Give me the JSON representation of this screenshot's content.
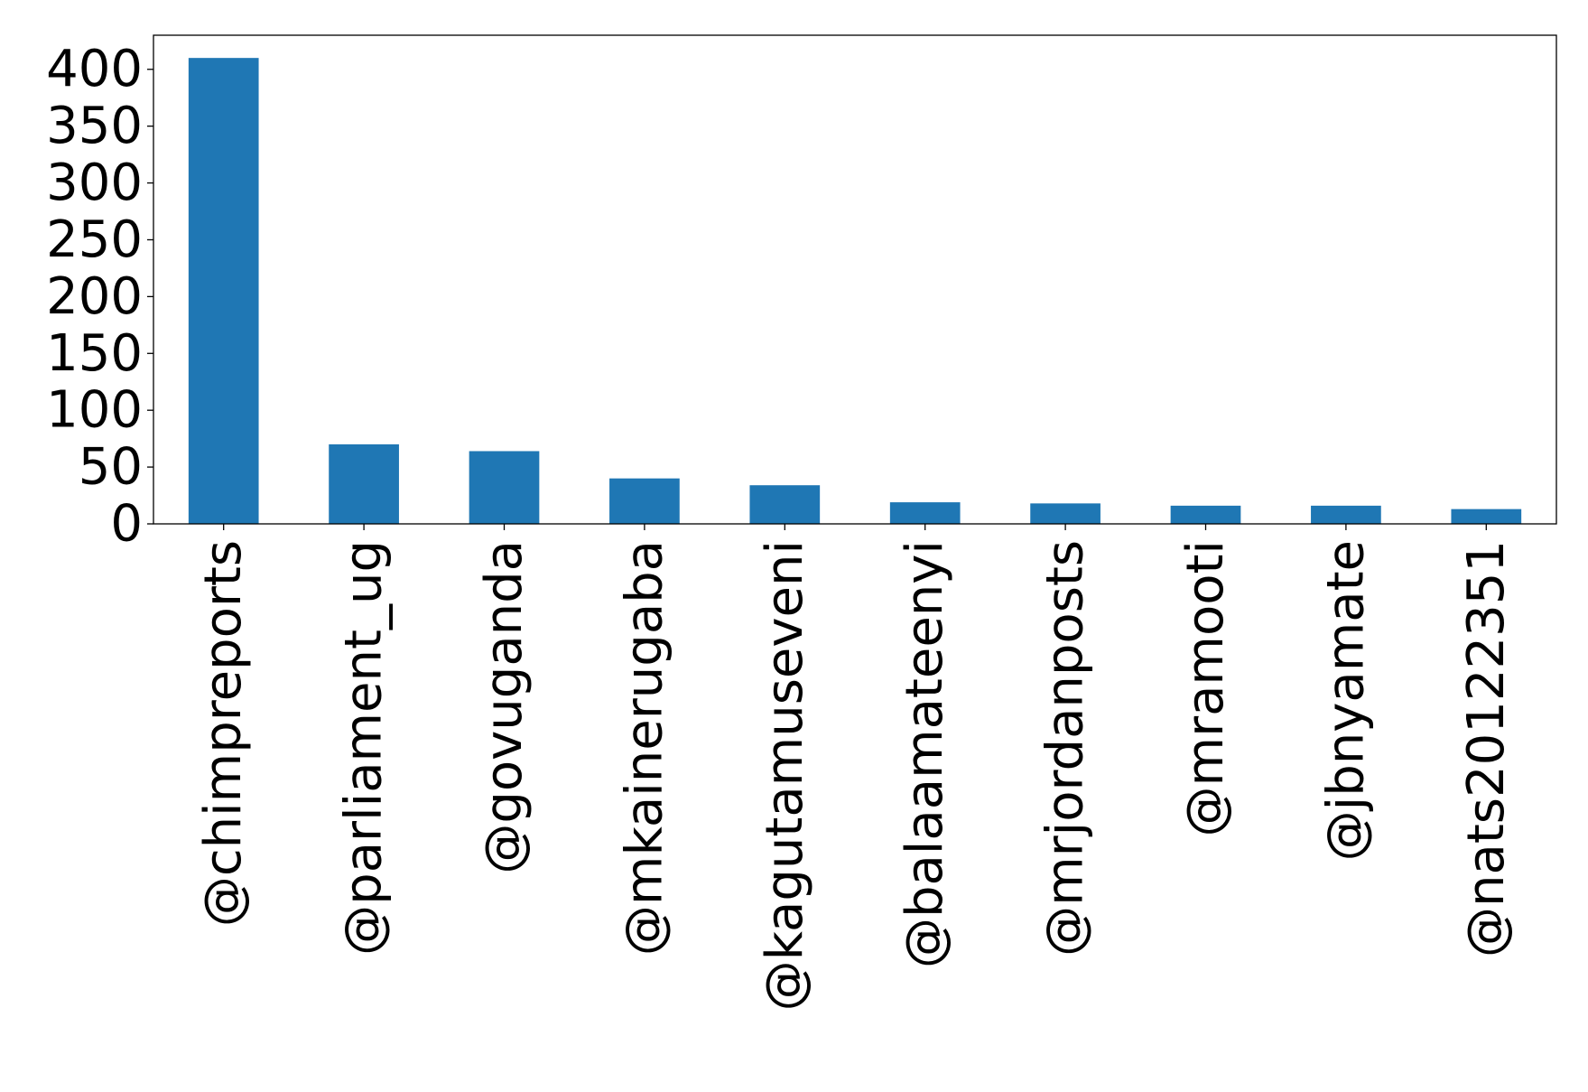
{
  "chart_data": {
    "type": "bar",
    "title": "",
    "xlabel": "",
    "ylabel": "",
    "categories": [
      "@chimpreports",
      "@parliament_ug",
      "@govuganda",
      "@mkainerugaba",
      "@kagutamuseveni",
      "@balaamateenyi",
      "@mrjordanposts",
      "@mramooti",
      "@jbnyamate",
      "@nats20122351"
    ],
    "values": [
      410,
      70,
      64,
      40,
      34,
      19,
      18,
      16,
      16,
      13
    ],
    "ylim": [
      0,
      430
    ],
    "yticks": [
      "0",
      "50",
      "100",
      "150",
      "200",
      "250",
      "300",
      "350",
      "400"
    ],
    "grid": false,
    "legend": "none",
    "bar_color": "#1f77b4"
  }
}
